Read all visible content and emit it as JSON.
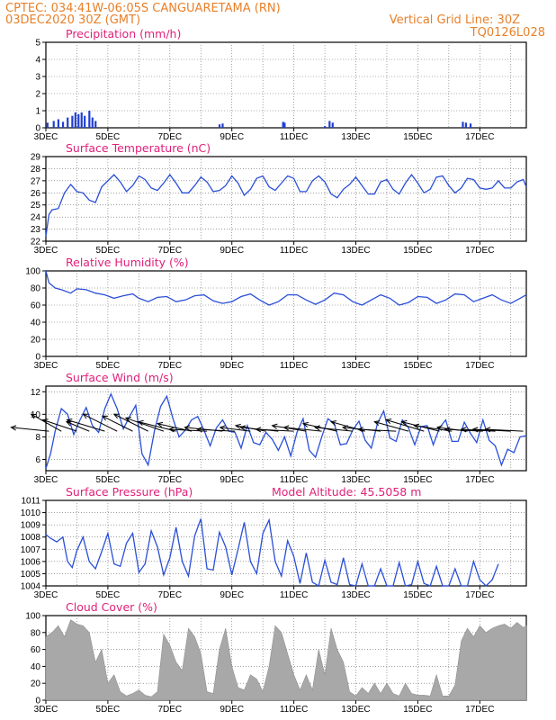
{
  "header": {
    "line1": "CPTEC:   034:41W-06:05S   CANGUARETAMA (RN)",
    "line2": "03DEC2020 30Z (GMT)",
    "grid_note": "Vertical Grid Line: 30Z",
    "code": "TQ0126L028"
  },
  "colors": {
    "header": "#e8802a",
    "title": "#e0207a",
    "line": "#2a4fd8",
    "precip": "#1f3fd0",
    "cloud": "#a8a8a8",
    "wind": "#000000"
  },
  "chart_data": [
    {
      "type": "bar",
      "title": "Precipitation (mm/h)",
      "x_range": [
        3.0,
        18.5
      ],
      "ylim": [
        0,
        5
      ],
      "yticks": [
        0,
        1,
        2,
        3,
        4,
        5
      ],
      "xtick_days": [
        3,
        5,
        7,
        9,
        11,
        13,
        15,
        17
      ],
      "xtick_labels": [
        "3DEC",
        "5DEC",
        "7DEC",
        "9DEC",
        "11DEC",
        "13DEC",
        "15DEC",
        "17DEC"
      ],
      "x_unit": "day of December 2020",
      "x": [
        3.05,
        3.25,
        3.4,
        3.55,
        3.7,
        3.85,
        3.95,
        4.05,
        4.15,
        4.25,
        4.4,
        4.5,
        4.6,
        8.6,
        8.7,
        10.65,
        10.7,
        12.0,
        12.15,
        12.25,
        16.45,
        16.55,
        16.7
      ],
      "values": [
        0.3,
        0.4,
        0.5,
        0.35,
        0.6,
        0.7,
        0.9,
        0.8,
        0.9,
        0.7,
        1.0,
        0.6,
        0.4,
        0.2,
        0.25,
        0.35,
        0.3,
        0.1,
        0.4,
        0.3,
        0.35,
        0.3,
        0.25
      ]
    },
    {
      "type": "line",
      "title": "Surface Temperature (nC)",
      "x_range": [
        3.0,
        18.5
      ],
      "ylim": [
        22,
        29
      ],
      "yticks": [
        22,
        23,
        24,
        25,
        26,
        27,
        28,
        29
      ],
      "xtick_days": [
        3,
        5,
        7,
        9,
        11,
        13,
        15,
        17
      ],
      "xtick_labels": [
        "3DEC",
        "5DEC",
        "7DEC",
        "9DEC",
        "11DEC",
        "13DEC",
        "15DEC",
        "17DEC"
      ],
      "x": [
        3.0,
        3.1,
        3.2,
        3.4,
        3.6,
        3.8,
        4.0,
        4.2,
        4.4,
        4.6,
        4.8,
        5.0,
        5.2,
        5.4,
        5.6,
        5.8,
        6.0,
        6.2,
        6.4,
        6.6,
        6.8,
        7.0,
        7.2,
        7.4,
        7.6,
        7.8,
        8.0,
        8.2,
        8.4,
        8.6,
        8.8,
        9.0,
        9.2,
        9.4,
        9.6,
        9.8,
        10.0,
        10.2,
        10.4,
        10.6,
        10.8,
        11.0,
        11.2,
        11.4,
        11.6,
        11.8,
        12.0,
        12.2,
        12.4,
        12.6,
        12.8,
        13.0,
        13.2,
        13.4,
        13.6,
        13.8,
        14.0,
        14.2,
        14.4,
        14.6,
        14.8,
        15.0,
        15.2,
        15.4,
        15.6,
        15.8,
        16.0,
        16.2,
        16.4,
        16.6,
        16.8,
        17.0,
        17.2,
        17.4,
        17.6,
        17.8,
        18.0,
        18.2,
        18.4,
        18.5
      ],
      "values": [
        22.4,
        24.2,
        24.6,
        24.7,
        26.0,
        26.7,
        26.1,
        26.0,
        25.4,
        25.2,
        26.5,
        27.0,
        27.5,
        26.9,
        26.1,
        26.6,
        27.4,
        27.1,
        26.4,
        26.2,
        26.8,
        27.5,
        26.8,
        26.0,
        26.0,
        26.6,
        27.3,
        26.9,
        26.1,
        26.2,
        26.6,
        27.4,
        26.8,
        25.8,
        26.3,
        27.2,
        27.4,
        26.5,
        26.2,
        26.8,
        27.4,
        27.2,
        26.1,
        26.1,
        27.0,
        27.4,
        26.9,
        25.9,
        25.6,
        26.3,
        26.7,
        27.3,
        26.6,
        25.9,
        25.9,
        26.9,
        27.1,
        26.3,
        25.9,
        26.8,
        27.5,
        26.8,
        26.0,
        26.3,
        27.3,
        27.4,
        26.6,
        26.0,
        26.4,
        27.2,
        27.1,
        26.4,
        26.3,
        26.4,
        27.0,
        26.4,
        26.4,
        26.9,
        27.1,
        26.5
      ]
    },
    {
      "type": "line",
      "title": "Relative Humidity (%)",
      "x_range": [
        3.0,
        18.5
      ],
      "ylim": [
        0,
        100
      ],
      "yticks": [
        0,
        20,
        40,
        60,
        80,
        100
      ],
      "xtick_days": [
        3,
        5,
        7,
        9,
        11,
        13,
        15,
        17
      ],
      "xtick_labels": [
        "3DEC",
        "5DEC",
        "7DEC",
        "9DEC",
        "11DEC",
        "13DEC",
        "15DEC",
        "17DEC"
      ],
      "x": [
        3.0,
        3.1,
        3.3,
        3.5,
        3.8,
        4.0,
        4.3,
        4.6,
        4.9,
        5.2,
        5.5,
        5.8,
        6.0,
        6.3,
        6.6,
        6.9,
        7.2,
        7.5,
        7.8,
        8.1,
        8.4,
        8.7,
        9.0,
        9.3,
        9.6,
        9.9,
        10.2,
        10.5,
        10.8,
        11.1,
        11.4,
        11.7,
        12.0,
        12.3,
        12.6,
        12.9,
        13.2,
        13.5,
        13.8,
        14.1,
        14.4,
        14.7,
        15.0,
        15.3,
        15.6,
        15.9,
        16.2,
        16.5,
        16.8,
        17.1,
        17.4,
        17.7,
        18.0,
        18.3,
        18.5
      ],
      "values": [
        100,
        86,
        80,
        78,
        74,
        79,
        78,
        74,
        72,
        68,
        71,
        73,
        68,
        64,
        69,
        70,
        64,
        66,
        71,
        72,
        65,
        62,
        64,
        70,
        73,
        66,
        60,
        64,
        72,
        72,
        66,
        61,
        66,
        74,
        72,
        64,
        60,
        66,
        72,
        68,
        60,
        63,
        70,
        69,
        62,
        66,
        73,
        72,
        64,
        68,
        72,
        66,
        62,
        68,
        72
      ]
    },
    {
      "type": "line",
      "title": "Surface Wind (m/s)",
      "x_range": [
        3.0,
        18.5
      ],
      "ylim": [
        5,
        12.5
      ],
      "yticks": [
        6,
        8,
        10,
        12
      ],
      "xtick_days": [
        3,
        5,
        7,
        9,
        11,
        13,
        15,
        17
      ],
      "xtick_labels": [
        "3DEC",
        "5DEC",
        "7DEC",
        "9DEC",
        "11DEC",
        "13DEC",
        "15DEC",
        "17DEC"
      ],
      "x": [
        3.0,
        3.15,
        3.3,
        3.5,
        3.7,
        3.9,
        4.1,
        4.3,
        4.5,
        4.7,
        4.9,
        5.1,
        5.3,
        5.5,
        5.7,
        5.9,
        6.1,
        6.3,
        6.5,
        6.7,
        6.9,
        7.1,
        7.3,
        7.5,
        7.7,
        7.9,
        8.1,
        8.3,
        8.5,
        8.7,
        8.9,
        9.1,
        9.3,
        9.5,
        9.7,
        9.9,
        10.1,
        10.3,
        10.5,
        10.7,
        10.9,
        11.1,
        11.3,
        11.5,
        11.7,
        11.9,
        12.1,
        12.3,
        12.5,
        12.7,
        12.9,
        13.1,
        13.3,
        13.5,
        13.7,
        13.9,
        14.1,
        14.3,
        14.5,
        14.7,
        14.9,
        15.1,
        15.3,
        15.5,
        15.7,
        15.9,
        16.1,
        16.3,
        16.5,
        16.7,
        16.9,
        17.1,
        17.3,
        17.5,
        17.7,
        17.9,
        18.1,
        18.3,
        18.5
      ],
      "values": [
        5.2,
        6.5,
        8.5,
        10.5,
        10.0,
        8.2,
        9.5,
        10.6,
        9.0,
        8.4,
        10.5,
        11.8,
        10.5,
        8.7,
        9.8,
        10.8,
        6.5,
        5.5,
        8.5,
        10.7,
        11.6,
        9.6,
        8.0,
        8.6,
        9.5,
        9.8,
        8.6,
        7.2,
        8.8,
        9.5,
        8.5,
        8.4,
        7.0,
        9.0,
        7.5,
        7.3,
        8.4,
        7.8,
        6.8,
        8.0,
        6.3,
        8.4,
        9.6,
        6.8,
        6.2,
        8.0,
        9.6,
        9.2,
        7.3,
        7.4,
        8.6,
        9.4,
        7.7,
        7.0,
        9.2,
        10.3,
        7.9,
        7.6,
        9.5,
        8.8,
        7.3,
        8.9,
        9.0,
        7.3,
        8.8,
        9.5,
        7.6,
        7.6,
        9.3,
        8.3,
        7.5,
        9.5,
        7.7,
        7.2,
        5.5,
        6.9,
        6.6,
        8.0,
        8.1
      ],
      "arrows_x": [
        3.1,
        3.5,
        4.0,
        4.4,
        4.9,
        5.3,
        5.8,
        6.3,
        6.8,
        7.2,
        7.7,
        8.2,
        8.7,
        9.1,
        9.6,
        10.1,
        10.5,
        11.0,
        11.4,
        11.9,
        12.4,
        12.9,
        13.3,
        13.8,
        14.3,
        14.7,
        15.2,
        15.7,
        16.1,
        16.6,
        17.1,
        17.5,
        18.0,
        18.4
      ],
      "arrows_dx": [
        -1,
        -0.8,
        -0.9,
        -0.6,
        -1,
        -0.9,
        -0.8,
        -0.9,
        -1,
        -1,
        -0.9,
        -1,
        -1,
        -1,
        -0.8,
        -0.8,
        -1,
        -1,
        -0.9,
        -1,
        -0.9,
        -1,
        -0.9,
        -1,
        -1,
        -0.9,
        -1,
        -1,
        -1,
        -0.8,
        -1,
        -0.9,
        -1,
        -1
      ],
      "arrows_dy": [
        0.1,
        0.45,
        0.3,
        0.25,
        0.3,
        0.45,
        0.4,
        0.45,
        0.35,
        0.25,
        0.2,
        0.05,
        0.1,
        0.05,
        0.1,
        0.15,
        0.1,
        0.05,
        0.15,
        0.1,
        0.2,
        0.1,
        0.25,
        0.1,
        0.05,
        0.25,
        0.3,
        0.25,
        0.15,
        0.1,
        0.05,
        0.05,
        0.05,
        0.05
      ]
    },
    {
      "type": "line",
      "title": "Surface Pressure (hPa)",
      "annotation": "Model Altitude: 45.5058  m",
      "x_range": [
        3.0,
        18.5
      ],
      "ylim": [
        1004,
        1011
      ],
      "yticks": [
        1004,
        1005,
        1006,
        1007,
        1008,
        1009,
        1010,
        1011
      ],
      "xtick_days": [
        3,
        5,
        7,
        9,
        11,
        13,
        15,
        17
      ],
      "xtick_labels": [
        "3DEC",
        "5DEC",
        "7DEC",
        "9DEC",
        "11DEC",
        "13DEC",
        "15DEC",
        "17DEC"
      ],
      "x": [
        3.0,
        3.15,
        3.35,
        3.55,
        3.7,
        3.85,
        4.0,
        4.2,
        4.4,
        4.6,
        4.8,
        5.0,
        5.2,
        5.4,
        5.6,
        5.8,
        6.0,
        6.2,
        6.4,
        6.6,
        6.8,
        7.0,
        7.2,
        7.4,
        7.6,
        7.8,
        8.0,
        8.2,
        8.4,
        8.6,
        8.8,
        9.0,
        9.2,
        9.4,
        9.6,
        9.8,
        10.0,
        10.2,
        10.4,
        10.6,
        10.8,
        11.0,
        11.2,
        11.4,
        11.6,
        11.8,
        12.0,
        12.2,
        12.4,
        12.6,
        12.8,
        13.0,
        13.2,
        13.4,
        13.6,
        13.8,
        14.0,
        14.2,
        14.4,
        14.6,
        14.8,
        15.0,
        15.2,
        15.4,
        15.6,
        15.8,
        16.0,
        16.2,
        16.4,
        16.6,
        16.8,
        17.0,
        17.2,
        17.4,
        17.6
      ],
      "values": [
        1008.2,
        1007.9,
        1007.6,
        1008.0,
        1006.0,
        1005.5,
        1006.9,
        1008.0,
        1006.0,
        1005.4,
        1006.8,
        1008.3,
        1005.8,
        1005.6,
        1007.5,
        1008.3,
        1005.1,
        1005.8,
        1008.5,
        1007.2,
        1004.9,
        1006.3,
        1008.8,
        1006.0,
        1004.8,
        1008.1,
        1009.5,
        1005.4,
        1005.3,
        1008.4,
        1007.2,
        1004.9,
        1007.0,
        1009.2,
        1006.0,
        1005.0,
        1008.3,
        1009.4,
        1006.0,
        1004.8,
        1007.7,
        1006.4,
        1004.2,
        1006.7,
        1004.3,
        1004.0,
        1006.1,
        1004.3,
        1004.1,
        1006.3,
        1004.1,
        1004.0,
        1005.8,
        1004.0,
        1004.0,
        1005.4,
        1004.0,
        1004.0,
        1005.9,
        1004.0,
        1004.1,
        1006.0,
        1004.2,
        1004.0,
        1005.6,
        1004.0,
        1004.0,
        1005.4,
        1004.0,
        1004.0,
        1006.0,
        1004.5,
        1004.0,
        1004.5,
        1005.8
      ]
    },
    {
      "type": "area",
      "title": "Cloud Cover (%)",
      "x_range": [
        3.0,
        18.5
      ],
      "ylim": [
        0,
        100
      ],
      "yticks": [
        0,
        20,
        40,
        60,
        80,
        100
      ],
      "xtick_days": [
        3,
        5,
        7,
        9,
        11,
        13,
        15,
        17
      ],
      "xtick_labels": [
        "3DEC",
        "5DEC",
        "7DEC",
        "9DEC",
        "11DEC",
        "13DEC",
        "15DEC",
        "17DEC"
      ],
      "x": [
        3.0,
        3.2,
        3.4,
        3.6,
        3.8,
        4.0,
        4.2,
        4.4,
        4.6,
        4.8,
        5.0,
        5.2,
        5.4,
        5.6,
        5.8,
        6.0,
        6.2,
        6.4,
        6.6,
        6.8,
        7.0,
        7.2,
        7.4,
        7.6,
        7.8,
        8.0,
        8.2,
        8.4,
        8.6,
        8.8,
        9.0,
        9.2,
        9.4,
        9.6,
        9.8,
        10.0,
        10.2,
        10.4,
        10.6,
        10.8,
        11.0,
        11.2,
        11.4,
        11.6,
        11.8,
        12.0,
        12.2,
        12.4,
        12.6,
        12.8,
        13.0,
        13.2,
        13.4,
        13.6,
        13.8,
        14.0,
        14.2,
        14.4,
        14.6,
        14.8,
        15.0,
        15.2,
        15.4,
        15.6,
        15.8,
        16.0,
        16.2,
        16.4,
        16.6,
        16.8,
        17.0,
        17.2,
        17.4,
        17.6,
        17.8,
        18.0,
        18.2,
        18.4,
        18.5
      ],
      "values": [
        75,
        80,
        88,
        75,
        95,
        90,
        88,
        80,
        45,
        60,
        20,
        30,
        10,
        5,
        8,
        12,
        6,
        4,
        10,
        78,
        65,
        45,
        35,
        85,
        75,
        55,
        10,
        8,
        60,
        85,
        40,
        15,
        12,
        30,
        25,
        10,
        40,
        88,
        80,
        55,
        30,
        12,
        30,
        12,
        60,
        30,
        85,
        60,
        45,
        10,
        5,
        15,
        8,
        20,
        8,
        20,
        8,
        5,
        20,
        8,
        6,
        6,
        5,
        30,
        5,
        5,
        18,
        70,
        85,
        75,
        88,
        80,
        85,
        88,
        90,
        85,
        92,
        86,
        88
      ]
    }
  ]
}
